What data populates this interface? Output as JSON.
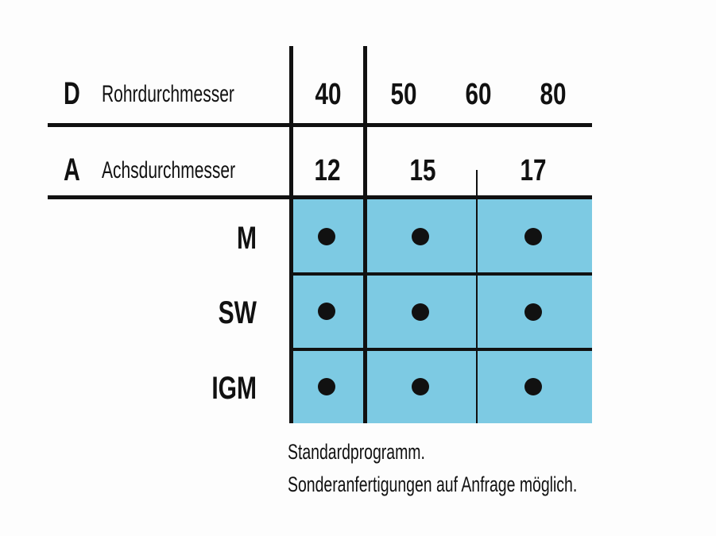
{
  "header": {
    "row_d": {
      "symbol": "D",
      "label": "Rohrdurchmesser",
      "values": [
        "40",
        "50",
        "60",
        "80"
      ]
    },
    "row_a": {
      "symbol": "A",
      "label": "Achsdurchmesser",
      "values": [
        "12",
        "15",
        "17"
      ]
    }
  },
  "rows": [
    {
      "label": "M",
      "marks": [
        "●",
        "●",
        "●"
      ]
    },
    {
      "label": "SW",
      "marks": [
        "●",
        "●",
        "●"
      ]
    },
    {
      "label": "IGM",
      "marks": [
        "●",
        "●",
        "●"
      ]
    }
  ],
  "footer": {
    "line1": "Standardprogramm.",
    "line2": "Sonderanfertigungen auf Anfrage möglich."
  },
  "colors": {
    "cell_fill": "#7dcae3",
    "lines": "#111111"
  }
}
